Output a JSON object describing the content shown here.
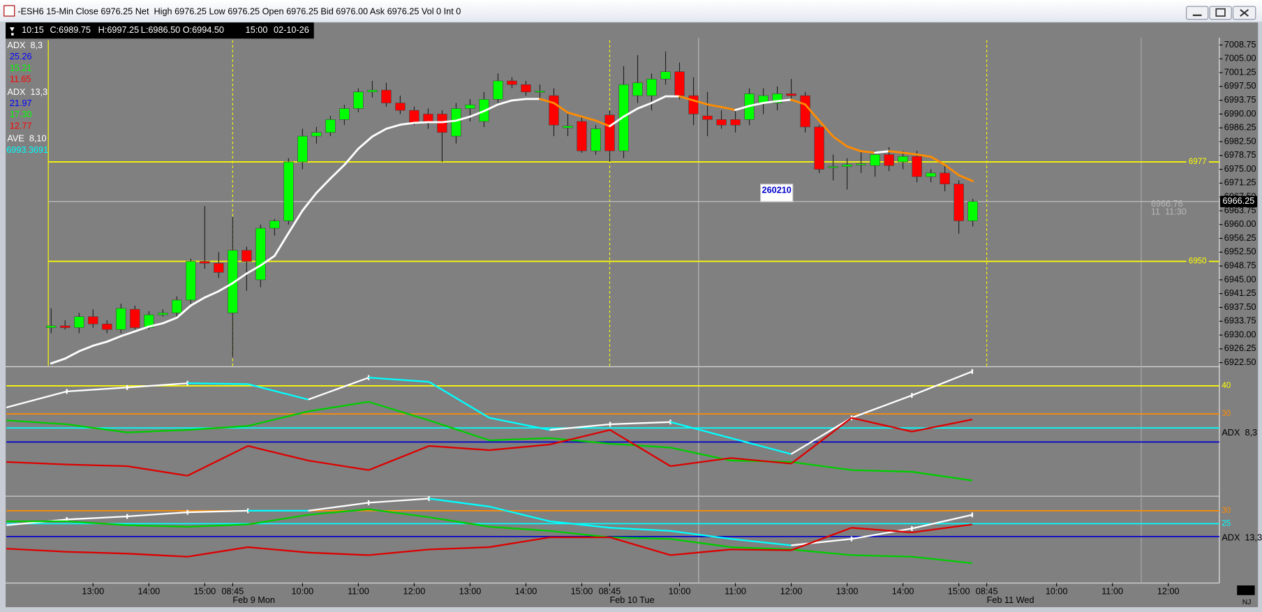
{
  "window": {
    "title": "-ESH6 15-Min Close 6976.25 Net  High 6976.25 Low 6976.25 Open 6976.25 Bid 6976.00 Ask 6976.25 Vol 0 Int 0"
  },
  "info_bar": [
    "10:15",
    "C:6989.75",
    "H:6997.25",
    "L:6986.50",
    "O:6994.50",
    "15:00",
    "02-10-26"
  ],
  "annotation": "260210",
  "cursor_label": [
    "6966.76",
    "11  11:30"
  ],
  "corner_label": "NJ",
  "chart_data": [
    {
      "type": "candlestick",
      "categories": [
        null,
        null,
        null,
        null,
        null,
        null,
        "13:00",
        null,
        null,
        null,
        "14:00",
        null,
        null,
        null,
        "15:00",
        null,
        "08:45",
        null,
        null,
        null,
        null,
        "10:00",
        null,
        null,
        null,
        "11:00",
        null,
        null,
        null,
        "12:00",
        null,
        null,
        null,
        "13:00",
        null,
        null,
        null,
        "14:00",
        null,
        null,
        null,
        "15:00",
        null,
        "08:45",
        null,
        null,
        null,
        null,
        "10:00",
        null,
        null,
        null,
        "11:00",
        null,
        null,
        null,
        "12:00",
        null,
        null,
        null,
        "13:00",
        null,
        null,
        null,
        "14:00",
        null,
        null,
        null,
        "15:00",
        null,
        "08:45",
        null,
        null,
        null,
        null,
        "10:00",
        null,
        null,
        null,
        "11:00",
        null,
        null,
        null,
        "12:00",
        null,
        null
      ],
      "dates": [
        null,
        null,
        null,
        null,
        null,
        null,
        null,
        null,
        null,
        null,
        null,
        null,
        null,
        null,
        null,
        null,
        "Feb 9 Mon",
        null,
        null,
        null,
        null,
        null,
        null,
        null,
        null,
        null,
        null,
        null,
        null,
        null,
        null,
        null,
        null,
        null,
        null,
        null,
        null,
        null,
        null,
        null,
        null,
        null,
        null,
        "Feb 10 Tue",
        null,
        null,
        null,
        null,
        null,
        null,
        null,
        null,
        null,
        null,
        null,
        null,
        null,
        null,
        null,
        null,
        null,
        null,
        null,
        null,
        null,
        null,
        null,
        null,
        null,
        null,
        "Feb 11 Wed",
        null,
        null,
        null,
        null,
        null,
        null,
        null,
        null,
        null,
        null,
        null,
        null,
        null,
        null,
        null
      ],
      "candles": [
        null,
        null,
        null,
        [
          6932,
          6937.25,
          6930.5,
          6932.5
        ],
        [
          6932.5,
          6934,
          6931.5,
          6932
        ],
        [
          6932,
          6936,
          6930.5,
          6935
        ],
        [
          6935,
          6937,
          6932,
          6933
        ],
        [
          6933,
          6934,
          6930.5,
          6931.5
        ],
        [
          6931.5,
          6938.5,
          6930.5,
          6937.25
        ],
        [
          6937,
          6938,
          6931.5,
          6932
        ],
        [
          6932,
          6936.5,
          6931.5,
          6935.5
        ],
        [
          6935.5,
          6937,
          6935,
          6936
        ],
        [
          6936,
          6940.5,
          6935,
          6939.5
        ],
        [
          6939.5,
          6950.75,
          6938.5,
          6950
        ],
        [
          6950,
          6965,
          6948,
          6949.5
        ],
        [
          6949.5,
          6952.5,
          6945.5,
          6947
        ],
        [
          6936,
          6962,
          6924,
          6953
        ],
        [
          6953,
          6954,
          6942,
          6950
        ],
        [
          6945,
          6960,
          6943,
          6959
        ],
        [
          6959,
          6961.5,
          6957,
          6961
        ],
        [
          6961,
          6978,
          6960,
          6977
        ],
        [
          6977,
          6986,
          6975,
          6984
        ],
        [
          6984,
          6986.5,
          6982,
          6985
        ],
        [
          6985,
          6989.5,
          6984,
          6988.5
        ],
        [
          6988.5,
          6992.5,
          6987,
          6991.5
        ],
        [
          6991.5,
          6997,
          6990.5,
          6996
        ],
        [
          6996,
          6999,
          6994.5,
          6996.5
        ],
        [
          6996.5,
          6998.5,
          6992,
          6993
        ],
        [
          6993,
          6995,
          6990,
          6991
        ],
        [
          6991,
          6992,
          6987,
          6987.5
        ],
        [
          6990,
          6991.5,
          6986,
          6988
        ],
        [
          6990,
          6991,
          6977,
          6985
        ],
        [
          6984,
          6993,
          6982,
          6991.5
        ],
        [
          6991.5,
          6994,
          6988,
          6992.5
        ],
        [
          6988,
          6996,
          6986.5,
          6994
        ],
        [
          6994,
          7001,
          6993,
          6999
        ],
        [
          6999,
          7000,
          6997,
          6998
        ],
        [
          6998,
          6999,
          6995,
          6996
        ],
        [
          6996,
          6998,
          6994,
          6996.25
        ],
        [
          6995,
          6997,
          6984,
          6987
        ],
        [
          6986.25,
          6990,
          6984,
          6986.75
        ],
        [
          6988,
          6989.5,
          6979.5,
          6980
        ],
        [
          6980,
          6987,
          6979,
          6986
        ],
        [
          6989.75,
          6991,
          6977,
          6980
        ],
        [
          6980,
          7003,
          6978,
          6998
        ],
        [
          6995,
          7006,
          6993,
          6998.5
        ],
        [
          6995,
          7001,
          6991,
          6999.5
        ],
        [
          6999.5,
          7007,
          6998,
          7001.5
        ],
        [
          7001.5,
          7004,
          6994,
          6995
        ],
        [
          6995,
          7000,
          6987,
          6990
        ],
        [
          6989.5,
          6996,
          6984,
          6988.5
        ],
        [
          6988.5,
          6991,
          6986,
          6987
        ],
        [
          6988.5,
          6991,
          6985,
          6987
        ],
        [
          6988.5,
          6997,
          6987,
          6995.5
        ],
        [
          6993,
          6997,
          6990,
          6995
        ],
        [
          6993,
          6997.5,
          6991,
          6995.5
        ],
        [
          6995.5,
          6999.5,
          6994,
          6995
        ],
        [
          6995,
          6996,
          6985,
          6986.5
        ],
        [
          6986.5,
          6987,
          6974,
          6975
        ],
        [
          6975.5,
          6979,
          6972,
          6975.75
        ],
        [
          6975.75,
          6978,
          6969.5,
          6976.25
        ],
        [
          6976.25,
          6980,
          6974,
          6976.5
        ],
        [
          6976,
          6980,
          6973,
          6979
        ],
        [
          6979,
          6981,
          6974.5,
          6976
        ],
        [
          6977,
          6980,
          6975,
          6978.5
        ],
        [
          6978.5,
          6980,
          6971.5,
          6973
        ],
        [
          6973,
          6975,
          6971.5,
          6974
        ],
        [
          6974,
          6976,
          6969,
          6971
        ],
        [
          6971,
          6972,
          6957.5,
          6961
        ],
        [
          6961,
          6967,
          6959.5,
          6966.25
        ],
        null,
        null,
        null,
        null,
        null,
        null,
        null,
        null,
        null,
        null,
        null,
        null,
        null,
        null,
        null,
        null
      ],
      "up_color": "#00ff00",
      "down_color": "#ff0000",
      "series": [
        {
          "name": "AVE  8,10",
          "legend_value": "6993.3691",
          "legend_color": "#00ffff",
          "rising_color": "#ffffff",
          "falling_color": "#ff8c00",
          "values": [
            null,
            null,
            null,
            6922.3,
            6923.6,
            6925.6,
            6927.1,
            6928.2,
            6929.7,
            6931.0,
            6932.3,
            6933.2,
            6934.7,
            6938.0,
            6940.2,
            6941.9,
            6944.1,
            6946.7,
            6948.9,
            6951.5,
            6957.7,
            6963.8,
            6968.6,
            6972.5,
            6976.2,
            6980.6,
            6983.9,
            6986.0,
            6987.1,
            6987.6,
            6987.8,
            6987.8,
            6988.2,
            6989.3,
            6990.8,
            6992.6,
            6993.7,
            6994.1,
            6994.1,
            6993.0,
            6990.4,
            6989.3,
            6988.2,
            6986.7,
            6989.3,
            6991.5,
            6993.0,
            6994.8,
            6994.8,
            6993.7,
            6992.6,
            6991.9,
            6991.1,
            6992.2,
            6993.0,
            6993.5,
            6993.9,
            6992.6,
            6988.2,
            6983.9,
            6981.2,
            6979.9,
            6979.5,
            6979.9,
            6979.5,
            6979.0,
            6978.4,
            6976.2,
            6973.4,
            6971.8,
            null,
            null,
            null,
            null,
            null,
            null,
            null,
            null,
            null,
            null,
            null,
            null,
            null,
            null,
            null,
            null
          ]
        }
      ],
      "ylim": [
        6921.4,
        7010.7
      ],
      "yticks": [
        7008.75,
        {
          "value": 7005,
          "label": "7005.00"
        },
        7001.25,
        {
          "value": 6997.5,
          "label": "6997.50"
        },
        6993.75,
        {
          "value": 6990,
          "label": "6990.00"
        },
        6986.25,
        {
          "value": 6982.5,
          "label": "6982.50"
        },
        6978.75,
        {
          "value": 6975,
          "label": "6975.00"
        },
        6971.25,
        {
          "value": 6967.5,
          "label": "6967.50"
        },
        6963.75,
        {
          "value": 6960,
          "label": "6960.00"
        },
        6956.25,
        {
          "value": 6952.5,
          "label": "6952.50"
        },
        6948.75,
        {
          "value": 6945,
          "label": "6945.00"
        },
        6941.25,
        {
          "value": 6937.5,
          "label": "6937.50"
        },
        6933.75,
        {
          "value": 6930,
          "label": "6930.00"
        },
        6926.25,
        {
          "value": 6922.5,
          "label": "6922.50"
        }
      ],
      "hlines": [
        6977,
        6950
      ],
      "hline_color": "#ffff00",
      "last_price": 6966.25
    },
    {
      "type": "line",
      "title": "ADX  8,3",
      "legend_values": [
        "25.26",
        "15.21",
        "11.65"
      ],
      "legend_colors": [
        "#0000ff",
        "#00ff00",
        "#ff0000"
      ],
      "ylim": [
        1,
        46.5
      ],
      "hlines": [
        40,
        30
      ],
      "hline_colors": [
        "#ffff00",
        "#ff8c00"
      ],
      "ref_lines": [
        25,
        20
      ],
      "ref_colors": [
        "#00ffff",
        "#0000cc"
      ],
      "series": [
        {
          "color": "#00ffff",
          "rising_color": "#ffffff",
          "values": [
            32.3,
            38,
            39.4,
            40.9,
            40.6,
            35.1,
            42.9,
            41.4,
            28.6,
            24.3,
            26.3,
            27.1,
            21.4,
            15.7,
            28.6,
            36.6,
            45.1
          ]
        },
        {
          "color": "#00cc00",
          "values": [
            27.7,
            26.3,
            23.4,
            24.3,
            25.7,
            30.9,
            34.3,
            27.7,
            20.6,
            21.4,
            19.4,
            18,
            13.4,
            12.9,
            10,
            9.4,
            6.3
          ]
        },
        {
          "color": "#dd0000",
          "values": [
            12.9,
            12,
            11.4,
            8,
            18.6,
            13.4,
            10,
            18.6,
            17.1,
            19.1,
            24.3,
            11.4,
            14.3,
            12.3,
            28.6,
            23.7,
            28
          ]
        }
      ]
    },
    {
      "type": "line",
      "title": "ADX  13,3",
      "legend_values": [
        "21.97",
        "17.30",
        "12.77"
      ],
      "legend_colors": [
        "#0000ff",
        "#00ff00",
        "#ff0000"
      ],
      "ylim": [
        2,
        35
      ],
      "hlines": [
        30,
        25
      ],
      "hline_colors": [
        "#ff8c00",
        "#00ffff"
      ],
      "ref_lines": [
        20
      ],
      "ref_colors": [
        "#0000cc"
      ],
      "series": [
        {
          "color": "#00ffff",
          "rising_color": "#ffffff",
          "values": [
            24.4,
            26.6,
            27.8,
            29.4,
            30,
            30,
            33.1,
            34.7,
            31.6,
            25.9,
            23.4,
            22.2,
            19.1,
            16.6,
            19.1,
            23.1,
            28.4
          ]
        },
        {
          "color": "#00cc00",
          "values": [
            25.9,
            25.9,
            24.4,
            23.8,
            24.7,
            28.4,
            30.6,
            27.5,
            23.8,
            22.2,
            19.7,
            19.1,
            15.9,
            15,
            12.8,
            12.2,
            9.7
          ]
        },
        {
          "color": "#dd0000",
          "values": [
            15.3,
            14.1,
            13.4,
            12.2,
            15.9,
            13.8,
            12.8,
            15,
            15.9,
            19.7,
            19.7,
            12.8,
            15,
            14.7,
            23.4,
            21.6,
            24.7
          ]
        }
      ]
    }
  ]
}
